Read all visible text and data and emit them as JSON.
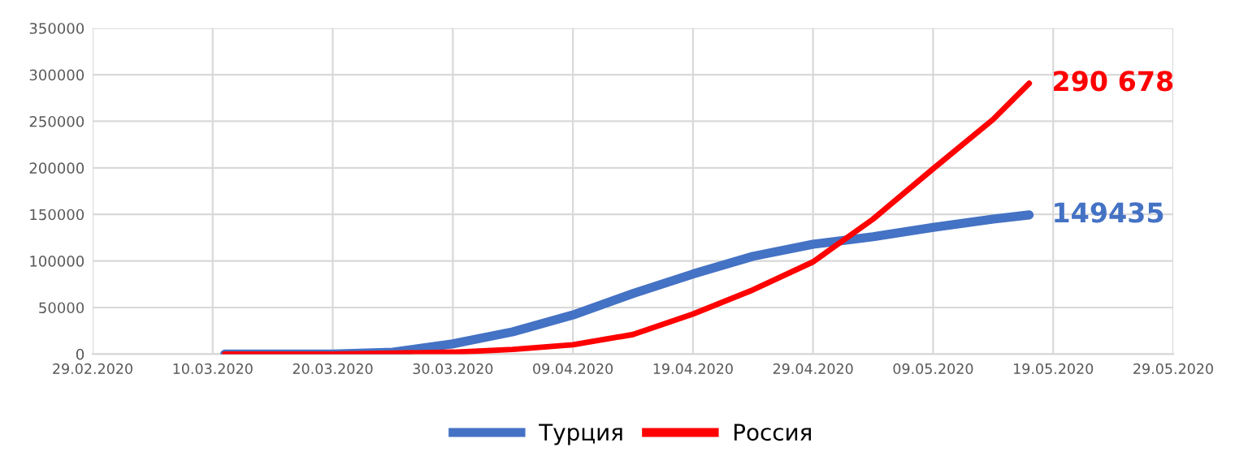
{
  "chart_data": {
    "type": "line",
    "x": [
      "2020-03-11",
      "2020-03-15",
      "2020-03-20",
      "2020-03-25",
      "2020-03-30",
      "2020-04-04",
      "2020-04-09",
      "2020-04-14",
      "2020-04-19",
      "2020-04-24",
      "2020-04-29",
      "2020-05-04",
      "2020-05-09",
      "2020-05-14",
      "2020-05-17"
    ],
    "series": [
      {
        "name": "Турция",
        "color": "#4472c4",
        "values": [
          0,
          0,
          0,
          2000,
          11000,
          24000,
          42000,
          65000,
          86000,
          105000,
          118000,
          126000,
          136000,
          145000,
          149435
        ]
      },
      {
        "name": "Россия",
        "color": "#ff0000",
        "values": [
          0,
          0,
          0,
          1000,
          2000,
          5000,
          10000,
          21000,
          43000,
          69000,
          99000,
          145000,
          199000,
          252000,
          290678
        ]
      }
    ],
    "xlim": [
      "2020-02-29",
      "2020-05-29"
    ],
    "xticks": [
      {
        "value": "2020-02-29",
        "label": "29.02.2020"
      },
      {
        "value": "2020-03-10",
        "label": "10.03.2020"
      },
      {
        "value": "2020-03-20",
        "label": "20.03.2020"
      },
      {
        "value": "2020-03-30",
        "label": "30.03.2020"
      },
      {
        "value": "2020-04-09",
        "label": "09.04.2020"
      },
      {
        "value": "2020-04-19",
        "label": "19.04.2020"
      },
      {
        "value": "2020-04-29",
        "label": "29.04.2020"
      },
      {
        "value": "2020-05-09",
        "label": "09.05.2020"
      },
      {
        "value": "2020-05-19",
        "label": "19.05.2020"
      },
      {
        "value": "2020-05-29",
        "label": "29.05.2020"
      }
    ],
    "ylim": [
      0,
      350000
    ],
    "yticks": [
      0,
      50000,
      100000,
      150000,
      200000,
      250000,
      300000,
      350000
    ],
    "annotations": [
      {
        "text": "290 678",
        "x": "2020-05-17",
        "y": 290678
      },
      {
        "text": "149435",
        "x": "2020-05-17",
        "y": 149435
      }
    ],
    "grid": true,
    "legend": "bottom",
    "line_style": "solid",
    "marker": "none"
  }
}
